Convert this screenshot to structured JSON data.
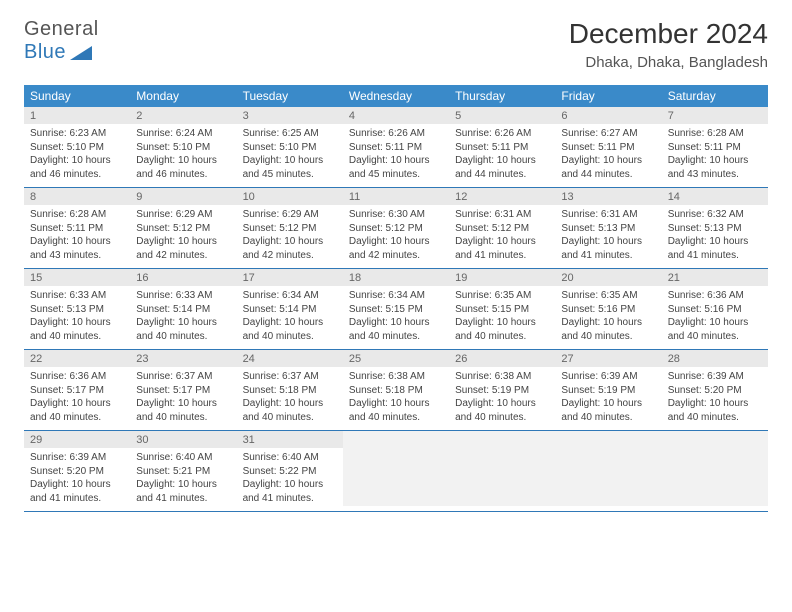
{
  "logo": {
    "line1": "General",
    "line2": "Blue"
  },
  "title": "December 2024",
  "location": "Dhaka, Dhaka, Bangladesh",
  "colors": {
    "header_bg": "#3a8ac9",
    "header_text": "#ffffff",
    "daynum_bg": "#e9e9e9",
    "border": "#2f78b7",
    "logo_blue": "#2f78b7",
    "text": "#333333"
  },
  "day_names": [
    "Sunday",
    "Monday",
    "Tuesday",
    "Wednesday",
    "Thursday",
    "Friday",
    "Saturday"
  ],
  "weeks": [
    [
      {
        "n": "1",
        "sr": "Sunrise: 6:23 AM",
        "ss": "Sunset: 5:10 PM",
        "dl": "Daylight: 10 hours and 46 minutes."
      },
      {
        "n": "2",
        "sr": "Sunrise: 6:24 AM",
        "ss": "Sunset: 5:10 PM",
        "dl": "Daylight: 10 hours and 46 minutes."
      },
      {
        "n": "3",
        "sr": "Sunrise: 6:25 AM",
        "ss": "Sunset: 5:10 PM",
        "dl": "Daylight: 10 hours and 45 minutes."
      },
      {
        "n": "4",
        "sr": "Sunrise: 6:26 AM",
        "ss": "Sunset: 5:11 PM",
        "dl": "Daylight: 10 hours and 45 minutes."
      },
      {
        "n": "5",
        "sr": "Sunrise: 6:26 AM",
        "ss": "Sunset: 5:11 PM",
        "dl": "Daylight: 10 hours and 44 minutes."
      },
      {
        "n": "6",
        "sr": "Sunrise: 6:27 AM",
        "ss": "Sunset: 5:11 PM",
        "dl": "Daylight: 10 hours and 44 minutes."
      },
      {
        "n": "7",
        "sr": "Sunrise: 6:28 AM",
        "ss": "Sunset: 5:11 PM",
        "dl": "Daylight: 10 hours and 43 minutes."
      }
    ],
    [
      {
        "n": "8",
        "sr": "Sunrise: 6:28 AM",
        "ss": "Sunset: 5:11 PM",
        "dl": "Daylight: 10 hours and 43 minutes."
      },
      {
        "n": "9",
        "sr": "Sunrise: 6:29 AM",
        "ss": "Sunset: 5:12 PM",
        "dl": "Daylight: 10 hours and 42 minutes."
      },
      {
        "n": "10",
        "sr": "Sunrise: 6:29 AM",
        "ss": "Sunset: 5:12 PM",
        "dl": "Daylight: 10 hours and 42 minutes."
      },
      {
        "n": "11",
        "sr": "Sunrise: 6:30 AM",
        "ss": "Sunset: 5:12 PM",
        "dl": "Daylight: 10 hours and 42 minutes."
      },
      {
        "n": "12",
        "sr": "Sunrise: 6:31 AM",
        "ss": "Sunset: 5:12 PM",
        "dl": "Daylight: 10 hours and 41 minutes."
      },
      {
        "n": "13",
        "sr": "Sunrise: 6:31 AM",
        "ss": "Sunset: 5:13 PM",
        "dl": "Daylight: 10 hours and 41 minutes."
      },
      {
        "n": "14",
        "sr": "Sunrise: 6:32 AM",
        "ss": "Sunset: 5:13 PM",
        "dl": "Daylight: 10 hours and 41 minutes."
      }
    ],
    [
      {
        "n": "15",
        "sr": "Sunrise: 6:33 AM",
        "ss": "Sunset: 5:13 PM",
        "dl": "Daylight: 10 hours and 40 minutes."
      },
      {
        "n": "16",
        "sr": "Sunrise: 6:33 AM",
        "ss": "Sunset: 5:14 PM",
        "dl": "Daylight: 10 hours and 40 minutes."
      },
      {
        "n": "17",
        "sr": "Sunrise: 6:34 AM",
        "ss": "Sunset: 5:14 PM",
        "dl": "Daylight: 10 hours and 40 minutes."
      },
      {
        "n": "18",
        "sr": "Sunrise: 6:34 AM",
        "ss": "Sunset: 5:15 PM",
        "dl": "Daylight: 10 hours and 40 minutes."
      },
      {
        "n": "19",
        "sr": "Sunrise: 6:35 AM",
        "ss": "Sunset: 5:15 PM",
        "dl": "Daylight: 10 hours and 40 minutes."
      },
      {
        "n": "20",
        "sr": "Sunrise: 6:35 AM",
        "ss": "Sunset: 5:16 PM",
        "dl": "Daylight: 10 hours and 40 minutes."
      },
      {
        "n": "21",
        "sr": "Sunrise: 6:36 AM",
        "ss": "Sunset: 5:16 PM",
        "dl": "Daylight: 10 hours and 40 minutes."
      }
    ],
    [
      {
        "n": "22",
        "sr": "Sunrise: 6:36 AM",
        "ss": "Sunset: 5:17 PM",
        "dl": "Daylight: 10 hours and 40 minutes."
      },
      {
        "n": "23",
        "sr": "Sunrise: 6:37 AM",
        "ss": "Sunset: 5:17 PM",
        "dl": "Daylight: 10 hours and 40 minutes."
      },
      {
        "n": "24",
        "sr": "Sunrise: 6:37 AM",
        "ss": "Sunset: 5:18 PM",
        "dl": "Daylight: 10 hours and 40 minutes."
      },
      {
        "n": "25",
        "sr": "Sunrise: 6:38 AM",
        "ss": "Sunset: 5:18 PM",
        "dl": "Daylight: 10 hours and 40 minutes."
      },
      {
        "n": "26",
        "sr": "Sunrise: 6:38 AM",
        "ss": "Sunset: 5:19 PM",
        "dl": "Daylight: 10 hours and 40 minutes."
      },
      {
        "n": "27",
        "sr": "Sunrise: 6:39 AM",
        "ss": "Sunset: 5:19 PM",
        "dl": "Daylight: 10 hours and 40 minutes."
      },
      {
        "n": "28",
        "sr": "Sunrise: 6:39 AM",
        "ss": "Sunset: 5:20 PM",
        "dl": "Daylight: 10 hours and 40 minutes."
      }
    ],
    [
      {
        "n": "29",
        "sr": "Sunrise: 6:39 AM",
        "ss": "Sunset: 5:20 PM",
        "dl": "Daylight: 10 hours and 41 minutes."
      },
      {
        "n": "30",
        "sr": "Sunrise: 6:40 AM",
        "ss": "Sunset: 5:21 PM",
        "dl": "Daylight: 10 hours and 41 minutes."
      },
      {
        "n": "31",
        "sr": "Sunrise: 6:40 AM",
        "ss": "Sunset: 5:22 PM",
        "dl": "Daylight: 10 hours and 41 minutes."
      },
      {
        "empty": true
      },
      {
        "empty": true
      },
      {
        "empty": true
      },
      {
        "empty": true
      }
    ]
  ]
}
